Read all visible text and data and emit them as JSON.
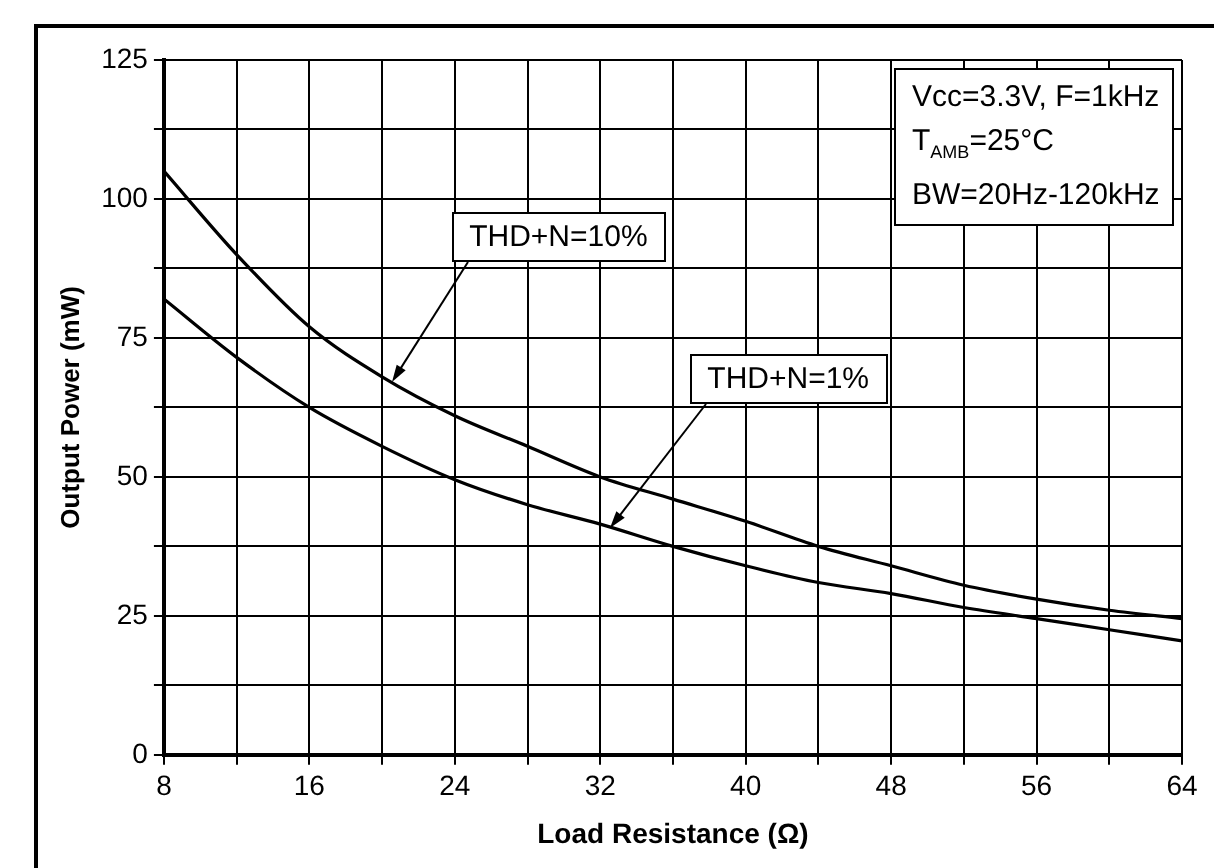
{
  "chart_data": {
    "type": "line",
    "xlabel": "Load Resistance (Ω)",
    "ylabel": "Output Power (mW)",
    "x": [
      8,
      12,
      16,
      20,
      24,
      28,
      32,
      36,
      40,
      44,
      48,
      52,
      56,
      60,
      64
    ],
    "series": [
      {
        "name": "THD+N=10%",
        "color": "#000000",
        "values": [
          105,
          90,
          77,
          68,
          61,
          55.5,
          50,
          46,
          42,
          37.5,
          34,
          30.5,
          28,
          26,
          24.5
        ]
      },
      {
        "name": "THD+N=1%",
        "color": "#000000",
        "values": [
          82,
          71.5,
          62.5,
          55.5,
          49.5,
          45,
          41.5,
          37.5,
          34,
          31,
          29,
          26.5,
          24.5,
          22.5,
          20.5
        ]
      }
    ],
    "xlim": [
      8,
      64
    ],
    "xticks": [
      8,
      {
        "value": 12,
        "label": null
      },
      16,
      {
        "value": 20,
        "label": null
      },
      24,
      {
        "value": 28,
        "label": null
      },
      32,
      {
        "value": 36,
        "label": null
      },
      40,
      {
        "value": 44,
        "label": null
      },
      48,
      {
        "value": 52,
        "label": null
      },
      56,
      {
        "value": 60,
        "label": null
      },
      64
    ],
    "ylim": [
      0,
      125
    ],
    "yticks": [
      0,
      {
        "value": 12.5,
        "label": null
      },
      25,
      {
        "value": 37.5,
        "label": null
      },
      50,
      {
        "value": 62.5,
        "label": null
      },
      75,
      {
        "value": 87.5,
        "label": null
      },
      100,
      {
        "value": 112.5,
        "label": null
      },
      125
    ],
    "grid": true,
    "legend": false,
    "marker": "none",
    "line_style": "solid",
    "annotations": [
      "Vcc=3.3V, F=1kHz",
      "T$_{AMB}$=25°C",
      "BW=20Hz-120kHz"
    ]
  }
}
